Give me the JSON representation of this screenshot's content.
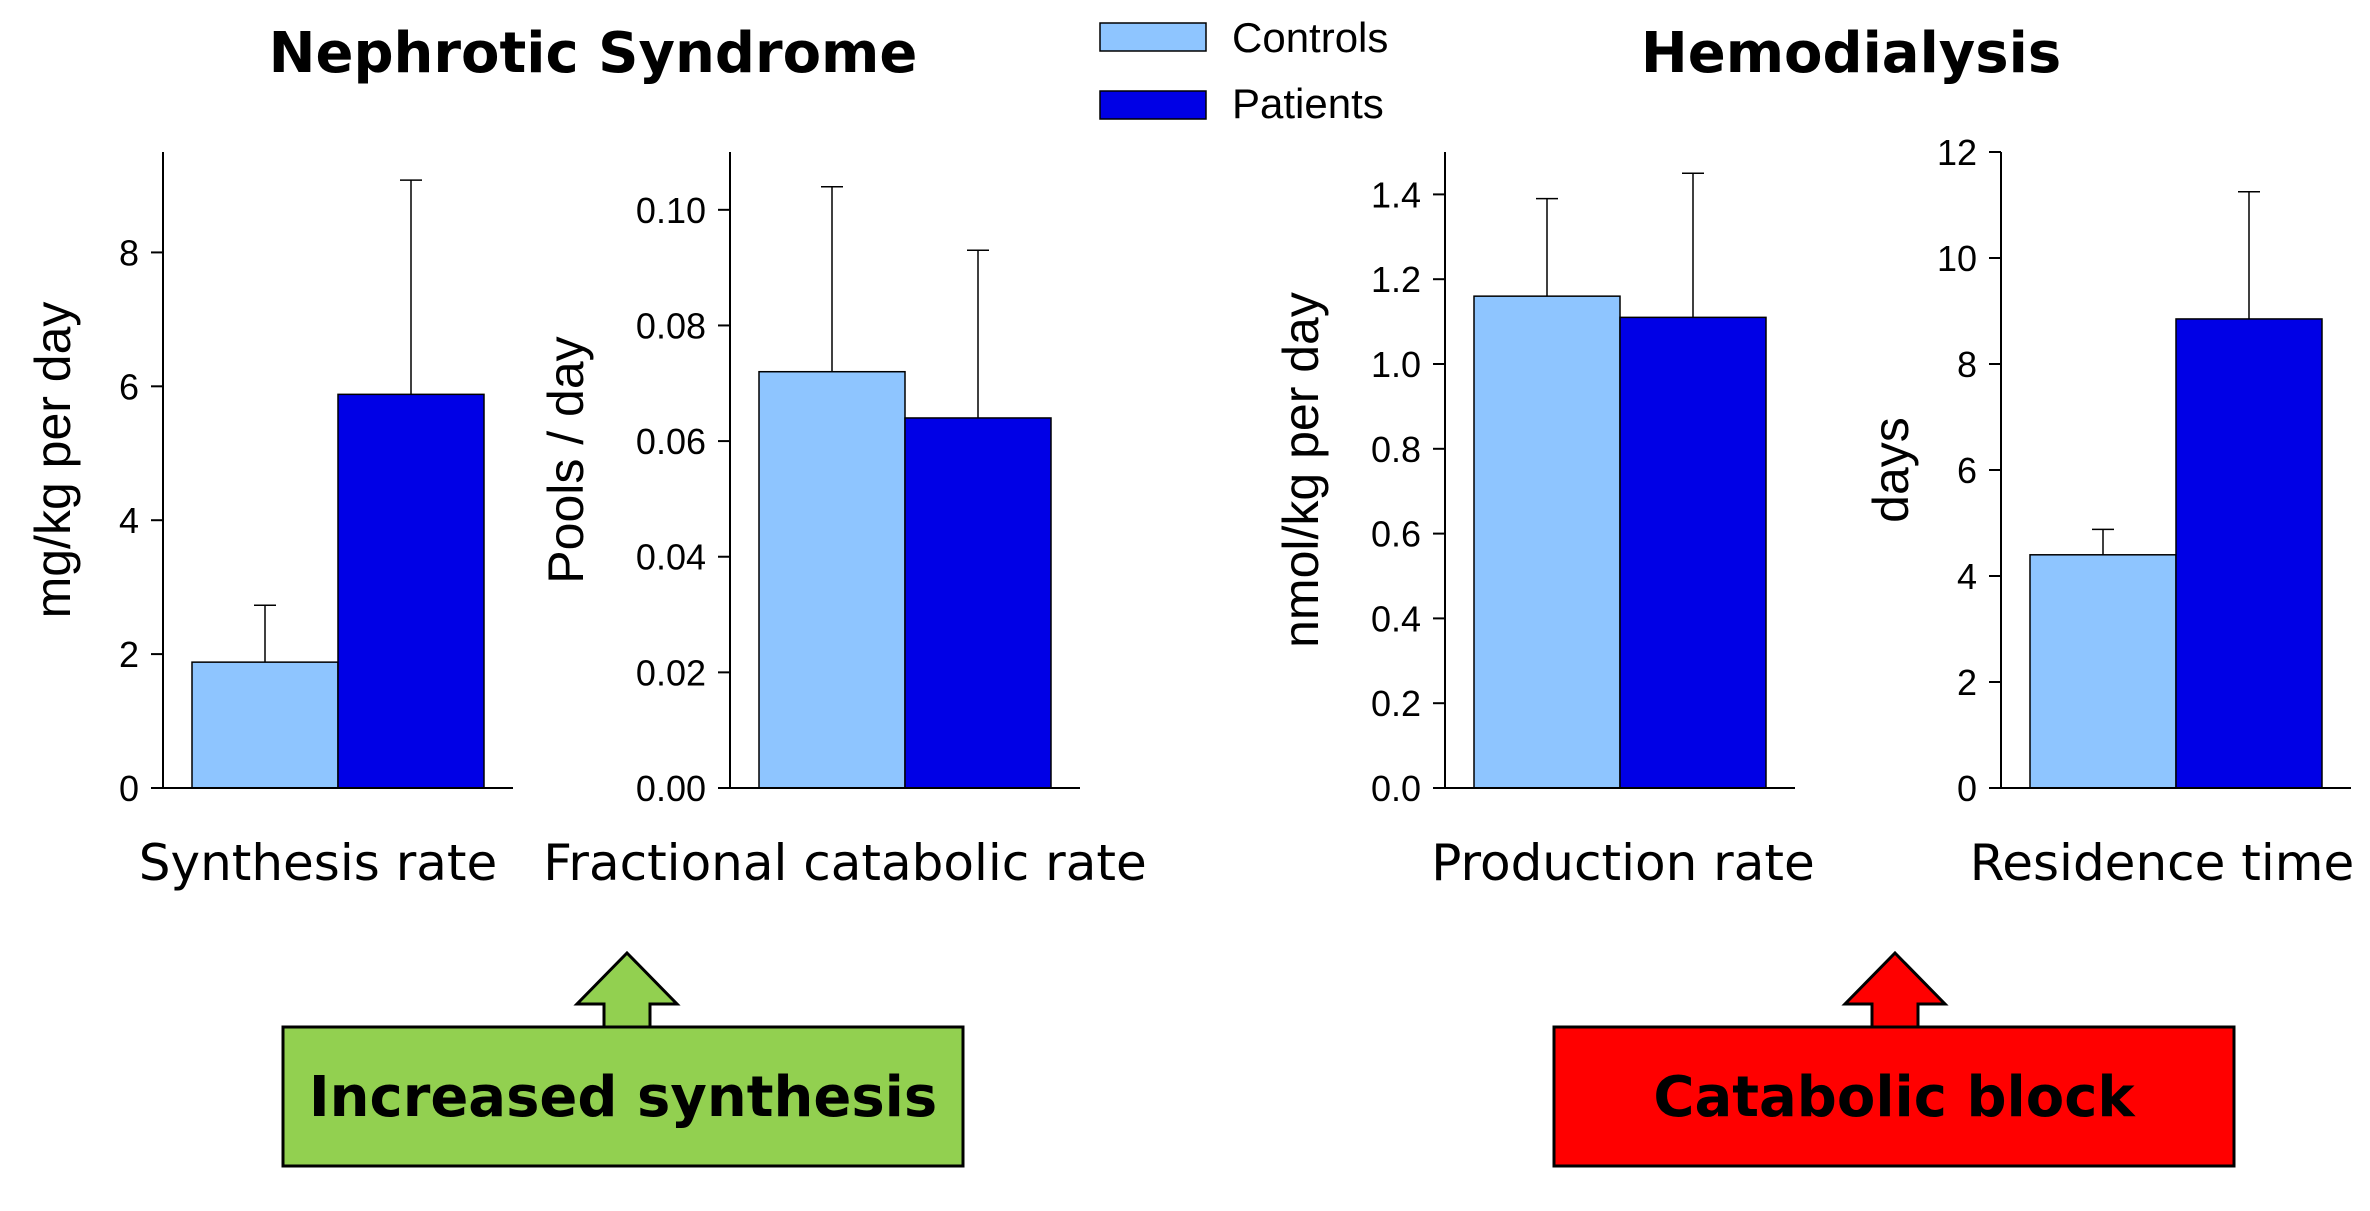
{
  "headings": {
    "left": "Nephrotic Syndrome",
    "right": "Hemodialysis"
  },
  "legend": {
    "controls": "Controls",
    "patients": "Patients"
  },
  "colors": {
    "controls": "#8EC5FF",
    "patients": "#0000E6",
    "increased_box": "#92D050",
    "catabolic_box": "#FF0000"
  },
  "annotations": {
    "increased": "Increased synthesis",
    "catabolic": "Catabolic block"
  },
  "chart_data": [
    {
      "type": "bar",
      "xlabel": "Synthesis rate",
      "ylabel": "mg/kg per day",
      "ylim": [
        0,
        9.5
      ],
      "ticks": [
        "0",
        "2",
        "4",
        "6",
        "8"
      ],
      "tick_values": [
        0,
        2,
        4,
        6,
        8
      ],
      "series": [
        {
          "name": "Controls",
          "value": 1.88,
          "error": 0.85
        },
        {
          "name": "Patients",
          "value": 5.88,
          "error": 3.2
        }
      ]
    },
    {
      "type": "bar",
      "xlabel": "Fractional catabolic rate",
      "ylabel": "Pools / day",
      "ylim": [
        0,
        0.11
      ],
      "ticks": [
        "0.00",
        "0.02",
        "0.04",
        "0.06",
        "0.08",
        "0.10"
      ],
      "tick_values": [
        0,
        0.02,
        0.04,
        0.06,
        0.08,
        0.1
      ],
      "series": [
        {
          "name": "Controls",
          "value": 0.072,
          "error": 0.032
        },
        {
          "name": "Patients",
          "value": 0.064,
          "error": 0.029
        }
      ]
    },
    {
      "type": "bar",
      "xlabel": "Production rate",
      "ylabel": "nmol/kg per day",
      "ylim": [
        0,
        1.5
      ],
      "ticks": [
        "0.0",
        "0.2",
        "0.4",
        "0.6",
        "0.8",
        "1.0",
        "1.2",
        "1.4"
      ],
      "tick_values": [
        0,
        0.2,
        0.4,
        0.6,
        0.8,
        1.0,
        1.2,
        1.4
      ],
      "series": [
        {
          "name": "Controls",
          "value": 1.16,
          "error": 0.23
        },
        {
          "name": "Patients",
          "value": 1.11,
          "error": 0.34
        }
      ]
    },
    {
      "type": "bar",
      "xlabel": "Residence time",
      "ylabel": "days",
      "ylim": [
        0,
        12
      ],
      "ticks": [
        "0",
        "2",
        "4",
        "6",
        "8",
        "10",
        "12"
      ],
      "tick_values": [
        0,
        2,
        4,
        6,
        8,
        10,
        12
      ],
      "series": [
        {
          "name": "Controls",
          "value": 4.4,
          "error": 0.48
        },
        {
          "name": "Patients",
          "value": 8.85,
          "error": 2.4
        }
      ]
    }
  ]
}
